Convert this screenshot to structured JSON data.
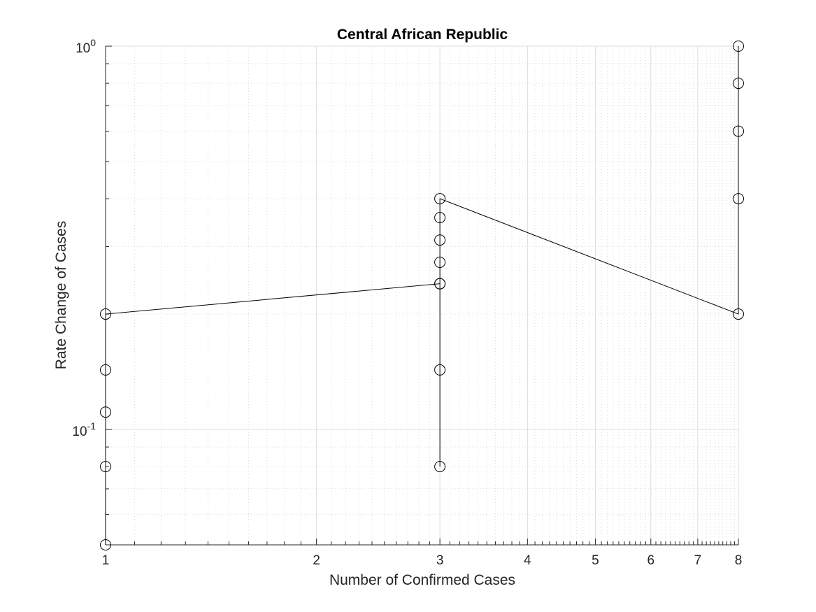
{
  "chart_data": {
    "type": "line",
    "title": "Central African Republic",
    "xlabel": "Number of Confirmed Cases",
    "ylabel": "Rate Change of Cases",
    "x_scale": "log",
    "y_scale": "log",
    "xlim": [
      1,
      8
    ],
    "ylim": [
      0.05,
      1
    ],
    "x_ticks": [
      1,
      2,
      3,
      4,
      5,
      6,
      7,
      8
    ],
    "x_tick_labels": [
      "1",
      "2",
      "3",
      "4",
      "5",
      "6",
      "7",
      "8"
    ],
    "y_ticks": [
      {
        "value": 0.1,
        "base": "10",
        "exp": "-1"
      },
      {
        "value": 1,
        "base": "10",
        "exp": "0"
      }
    ],
    "grid": true,
    "minor_grid": true,
    "marker": "circle",
    "colors": {
      "line": "#000000",
      "grid": "#dcdcdc",
      "axis": "#262626"
    },
    "series": [
      {
        "points": [
          [
            1,
            0.05
          ],
          [
            1,
            0.08
          ],
          [
            1,
            0.111
          ],
          [
            1,
            0.143
          ],
          [
            1,
            0.2
          ],
          [
            3,
            0.24
          ],
          [
            3,
            0.08
          ],
          [
            3,
            0.143
          ],
          [
            3,
            0.24
          ],
          [
            3,
            0.273
          ],
          [
            3,
            0.312
          ],
          [
            3,
            0.357
          ],
          [
            3,
            0.4
          ],
          [
            8,
            0.2
          ],
          [
            8,
            0.4
          ],
          [
            8,
            0.6
          ],
          [
            8,
            0.8
          ],
          [
            8,
            1.0
          ]
        ]
      }
    ]
  }
}
